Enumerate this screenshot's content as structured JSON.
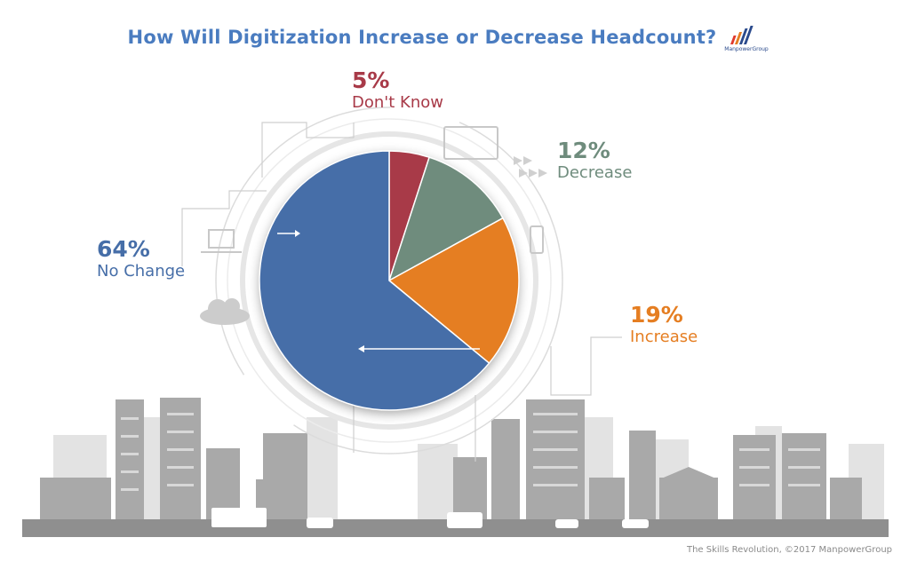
{
  "header": {
    "title": "How Will Digitization Increase or Decrease Headcount?",
    "logo_text": "ManpowerGroup"
  },
  "colors": {
    "title": "#4a7cc0",
    "dont_know": "#a83a48",
    "decrease": "#6f8c7d",
    "increase": "#e57e22",
    "no_change": "#466ea8",
    "city": "#9a9a9a"
  },
  "chart_data": {
    "type": "pie",
    "title": "How Will Digitization Increase or Decrease Headcount?",
    "slices": [
      {
        "label": "Don't Know",
        "value": 5,
        "display": "5%",
        "color": "#a83a48"
      },
      {
        "label": "Decrease",
        "value": 12,
        "display": "12%",
        "color": "#6f8c7d"
      },
      {
        "label": "Increase",
        "value": 19,
        "display": "19%",
        "color": "#e57e22"
      },
      {
        "label": "No Change",
        "value": 64,
        "display": "64%",
        "color": "#466ea8"
      }
    ],
    "start": "12 o'clock",
    "direction": "clockwise"
  },
  "footer": {
    "credit": "The Skills Revolution, ©2017 ManpowerGroup"
  }
}
